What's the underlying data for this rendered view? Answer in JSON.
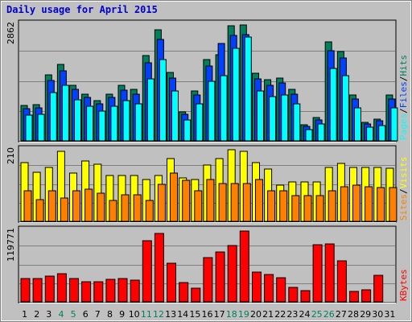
{
  "title": "Daily usage for April 2015",
  "colors": {
    "background": "#c0c0c0",
    "plot_background": "#c0c0c0",
    "hits": "#00805c",
    "files": "#0040ff",
    "pages": "#00ffff",
    "visits": "#ffff00",
    "sites": "#ff8000",
    "kbytes": "#ff0000",
    "weekday_label": "#000000",
    "weekend_label": "#00805c",
    "title": "#0000cc"
  },
  "chart_data": [
    {
      "type": "bar",
      "panel": "hits_files_pages",
      "ylabel_parts": [
        "Pages",
        "/",
        "Files",
        "/",
        "Hits"
      ],
      "ylabel_colors": [
        "#00ffff",
        "#000000",
        "#0040ff",
        "#000000",
        "#00805c"
      ],
      "max_label": "2862",
      "ylim": [
        0,
        2862
      ],
      "categories": [
        "1",
        "2",
        "3",
        "4",
        "5",
        "6",
        "7",
        "8",
        "9",
        "10",
        "11",
        "12",
        "13",
        "14",
        "15",
        "16",
        "17",
        "18",
        "19",
        "20",
        "21",
        "22",
        "23",
        "24",
        "25",
        "26",
        "27",
        "28",
        "29",
        "30",
        "31"
      ],
      "weekend_days": [
        "4",
        "5",
        "11",
        "12",
        "18",
        "19",
        "25",
        "26"
      ],
      "series": [
        {
          "name": "Hits",
          "color": "#00805c",
          "values": [
            876,
            898,
            1600,
            1852,
            1360,
            1148,
            992,
            1148,
            1352,
            1250,
            2060,
            2680,
            1664,
            712,
            1226,
            1982,
            2090,
            2780,
            2810,
            1652,
            1480,
            1532,
            1248,
            402,
            579,
            2390,
            2160,
            1120,
            470,
            541,
            1120
          ]
        },
        {
          "name": "Files",
          "color": "#0040ff",
          "values": [
            800,
            820,
            1468,
            1700,
            1248,
            1054,
            910,
            1054,
            1242,
            1148,
            1890,
            2460,
            1526,
            656,
            1126,
            1818,
            2352,
            2558,
            2580,
            1516,
            1358,
            1406,
            1144,
            369,
            531,
            2193,
            2010,
            1028,
            432,
            496,
            1028
          ]
        },
        {
          "name": "Pages",
          "color": "#00ffff",
          "values": [
            639,
            655,
            1174,
            1357,
            1000,
            842,
            727,
            842,
            992,
            917,
            1510,
            1966,
            1220,
            524,
            900,
            1452,
            1580,
            2240,
            2520,
            1210,
            1086,
            1124,
            915,
            295,
            424,
            1752,
            1580,
            820,
            345,
            396,
            820
          ]
        }
      ]
    },
    {
      "type": "bar",
      "panel": "visits_sites",
      "ylabel_parts": [
        "Sites",
        "/",
        "Visits"
      ],
      "ylabel_colors": [
        "#ff8000",
        "#000000",
        "#ffff00"
      ],
      "max_label": "210",
      "ylim": [
        0,
        210
      ],
      "categories": [
        "1",
        "2",
        "3",
        "4",
        "5",
        "6",
        "7",
        "8",
        "9",
        "10",
        "11",
        "12",
        "13",
        "14",
        "15",
        "16",
        "17",
        "18",
        "19",
        "20",
        "21",
        "22",
        "23",
        "24",
        "25",
        "26",
        "27",
        "28",
        "29",
        "30",
        "31"
      ],
      "weekend_days": [
        "4",
        "5",
        "11",
        "12",
        "18",
        "19",
        "25",
        "26"
      ],
      "series": [
        {
          "name": "Visits",
          "color": "#ffff00",
          "values": [
            168,
            142,
            155,
            200,
            140,
            173,
            165,
            132,
            132,
            132,
            122,
            132,
            180,
            126,
            120,
            162,
            180,
            206,
            202,
            168,
            150,
            105,
            115,
            115,
            115,
            155,
            166,
            155,
            155,
            155,
            152
          ]
        },
        {
          "name": "Sites",
          "color": "#ff8000",
          "values": [
            88,
            64,
            90,
            68,
            90,
            94,
            82,
            62,
            78,
            78,
            62,
            108,
            140,
            118,
            90,
            120,
            110,
            110,
            110,
            120,
            90,
            90,
            75,
            75,
            75,
            90,
            100,
            105,
            100,
            98,
            98
          ]
        }
      ]
    },
    {
      "type": "bar",
      "panel": "kbytes",
      "ylabel_parts": [
        "KBytes"
      ],
      "ylabel_colors": [
        "#ff0000"
      ],
      "max_label": "119771",
      "ylim": [
        0,
        119771
      ],
      "categories": [
        "1",
        "2",
        "3",
        "4",
        "5",
        "6",
        "7",
        "8",
        "9",
        "10",
        "11",
        "12",
        "13",
        "14",
        "15",
        "16",
        "17",
        "18",
        "19",
        "20",
        "21",
        "22",
        "23",
        "24",
        "25",
        "26",
        "27",
        "28",
        "29",
        "30",
        "31"
      ],
      "weekend_days": [
        "4",
        "5",
        "11",
        "12",
        "18",
        "19",
        "25",
        "26"
      ],
      "series": [
        {
          "name": "KBytes",
          "color": "#ff0000",
          "values": [
            39700,
            39700,
            43500,
            47000,
            39000,
            34000,
            34000,
            37500,
            39300,
            36500,
            99800,
            112000,
            64000,
            32000,
            23000,
            73300,
            82000,
            93000,
            116000,
            49000,
            45000,
            41000,
            25000,
            19000,
            93700,
            95500,
            68000,
            18000,
            20600,
            44000,
            0
          ]
        }
      ]
    }
  ]
}
